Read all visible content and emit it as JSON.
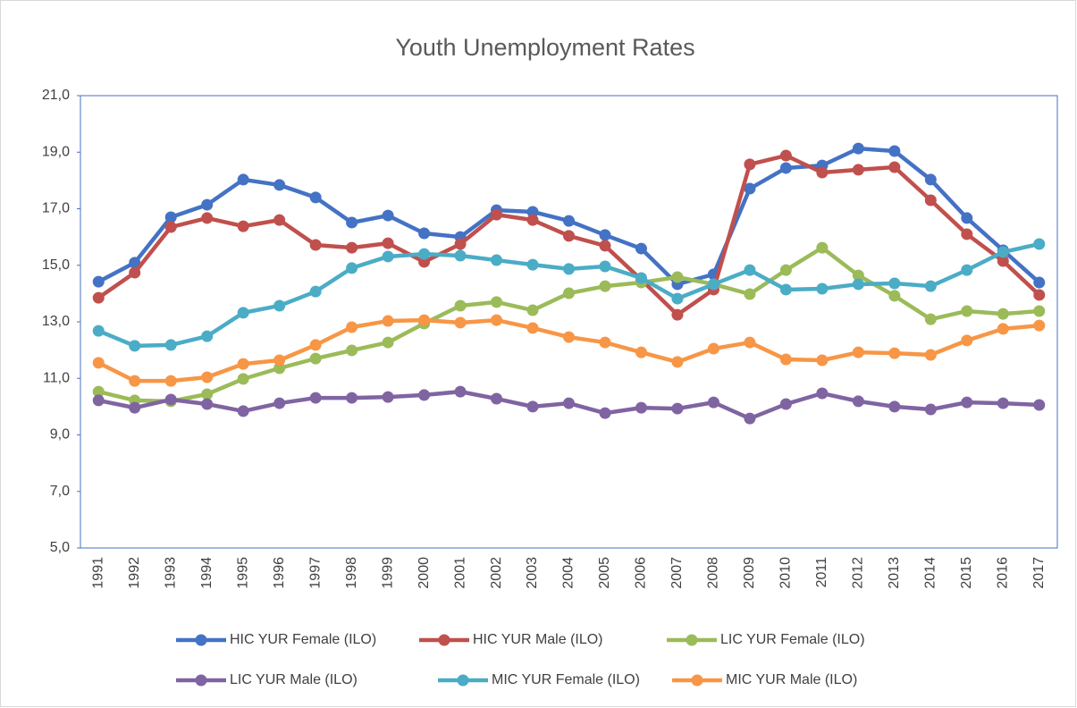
{
  "chart_data": {
    "type": "line",
    "title": "Youth Unemployment Rates",
    "categories": [
      "1991",
      "1992",
      "1993",
      "1994",
      "1995",
      "1996",
      "1997",
      "1998",
      "1999",
      "2000",
      "2001",
      "2002",
      "2003",
      "2004",
      "2005",
      "2006",
      "2007",
      "2008",
      "2009",
      "2010",
      "2011",
      "2012",
      "2013",
      "2014",
      "2015",
      "2016",
      "2017"
    ],
    "series": [
      {
        "name": "HIC YUR Female (ILO)",
        "color": "#4472c4",
        "values": [
          14.42,
          15.09,
          16.7,
          17.14,
          18.03,
          17.84,
          17.4,
          16.51,
          16.76,
          16.13,
          16.0,
          16.95,
          16.89,
          16.57,
          16.07,
          15.59,
          14.33,
          14.68,
          17.71,
          18.44,
          18.53,
          19.13,
          19.04,
          18.03,
          16.67,
          15.53,
          14.39
        ]
      },
      {
        "name": "HIC YUR Male (ILO)",
        "color": "#c0504d",
        "values": [
          13.85,
          14.74,
          16.35,
          16.67,
          16.38,
          16.6,
          15.72,
          15.62,
          15.78,
          15.12,
          15.75,
          16.79,
          16.6,
          16.04,
          15.69,
          14.49,
          13.25,
          14.14,
          18.57,
          18.88,
          18.28,
          18.38,
          18.47,
          17.3,
          16.1,
          15.15,
          13.95
        ]
      },
      {
        "name": "LIC YUR Female (ILO)",
        "color": "#9bbb59",
        "values": [
          10.53,
          10.22,
          10.19,
          10.44,
          10.98,
          11.36,
          11.7,
          11.99,
          12.27,
          12.94,
          13.57,
          13.7,
          13.41,
          14.01,
          14.26,
          14.39,
          14.58,
          14.33,
          13.98,
          14.83,
          15.62,
          14.64,
          13.92,
          13.09,
          13.38,
          13.28,
          13.38
        ]
      },
      {
        "name": "LIC YUR Male (ILO)",
        "color": "#8064a2",
        "values": [
          10.22,
          9.96,
          10.25,
          10.09,
          9.84,
          10.12,
          10.31,
          10.31,
          10.34,
          10.41,
          10.53,
          10.28,
          10.0,
          10.12,
          9.77,
          9.96,
          9.93,
          10.15,
          9.58,
          10.09,
          10.47,
          10.19,
          10.0,
          9.9,
          10.15,
          10.12,
          10.06
        ]
      },
      {
        "name": "MIC YUR Female (ILO)",
        "color": "#4bacc6",
        "values": [
          12.68,
          12.15,
          12.18,
          12.49,
          13.32,
          13.57,
          14.07,
          14.9,
          15.31,
          15.4,
          15.34,
          15.18,
          15.02,
          14.87,
          14.96,
          14.55,
          13.82,
          14.33,
          14.83,
          14.14,
          14.17,
          14.33,
          14.36,
          14.26,
          14.83,
          15.47,
          15.75
        ]
      },
      {
        "name": "MIC YUR Male (ILO)",
        "color": "#f79646",
        "values": [
          11.55,
          10.91,
          10.91,
          11.04,
          11.51,
          11.64,
          12.18,
          12.81,
          13.03,
          13.06,
          12.97,
          13.06,
          12.78,
          12.46,
          12.27,
          11.92,
          11.58,
          12.05,
          12.27,
          11.67,
          11.64,
          11.92,
          11.89,
          11.83,
          12.34,
          12.75,
          12.87
        ]
      }
    ],
    "ylim": [
      5,
      21
    ],
    "yticks": [
      {
        "value": 5,
        "label": "5,0"
      },
      {
        "value": 7,
        "label": "7,0"
      },
      {
        "value": 9,
        "label": "9,0"
      },
      {
        "value": 11,
        "label": "11,0"
      },
      {
        "value": 13,
        "label": "13,0"
      },
      {
        "value": 15,
        "label": "15,0"
      },
      {
        "value": 17,
        "label": "17,0"
      },
      {
        "value": 19,
        "label": "19,0"
      },
      {
        "value": 21,
        "label": "21,0"
      }
    ],
    "grid": false,
    "legend": "bottom"
  }
}
